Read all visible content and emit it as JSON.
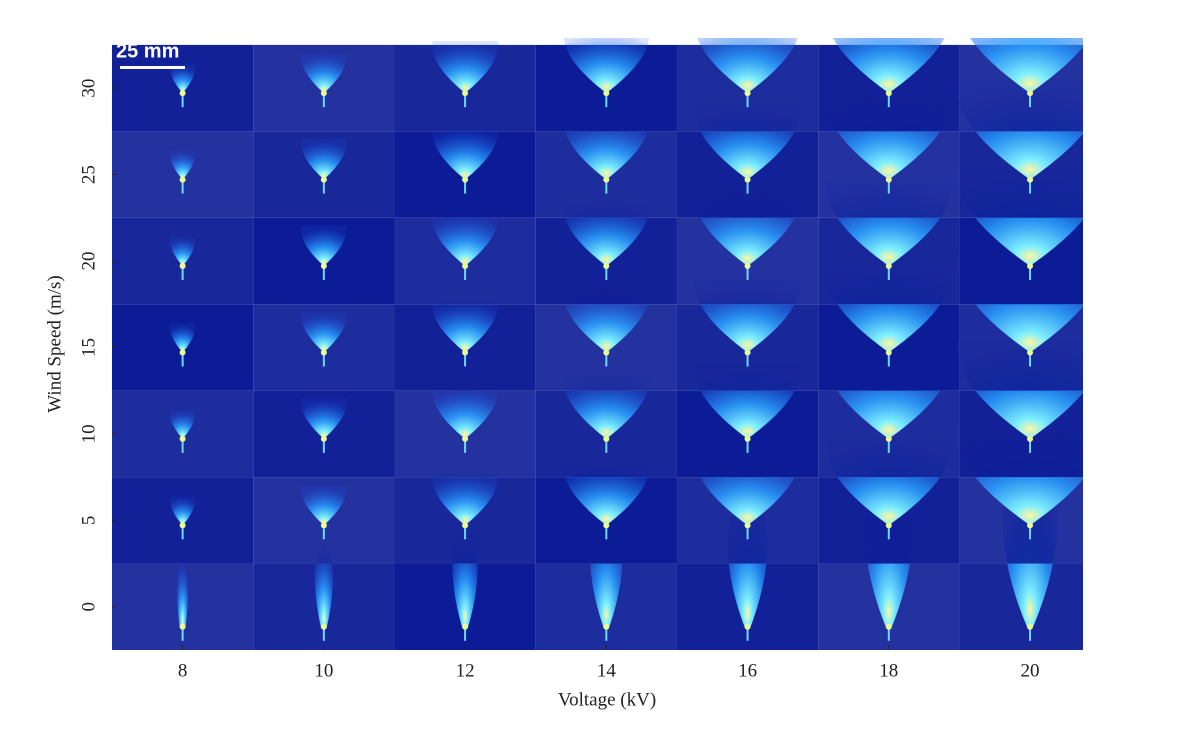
{
  "chart_data": {
    "type": "image-grid",
    "scale_bar": "25 mm",
    "xlabel": "Voltage (kV)",
    "ylabel": "Wind Speed (m/s)",
    "xlim": [
      7,
      20.75
    ],
    "xticks": [
      8,
      10,
      12,
      14,
      16,
      18,
      20
    ],
    "ylim": [
      -2.5,
      32.9
    ],
    "yticks": [
      0,
      5,
      10,
      15,
      20,
      25,
      30
    ],
    "background_color": "#0c1c96"
  }
}
